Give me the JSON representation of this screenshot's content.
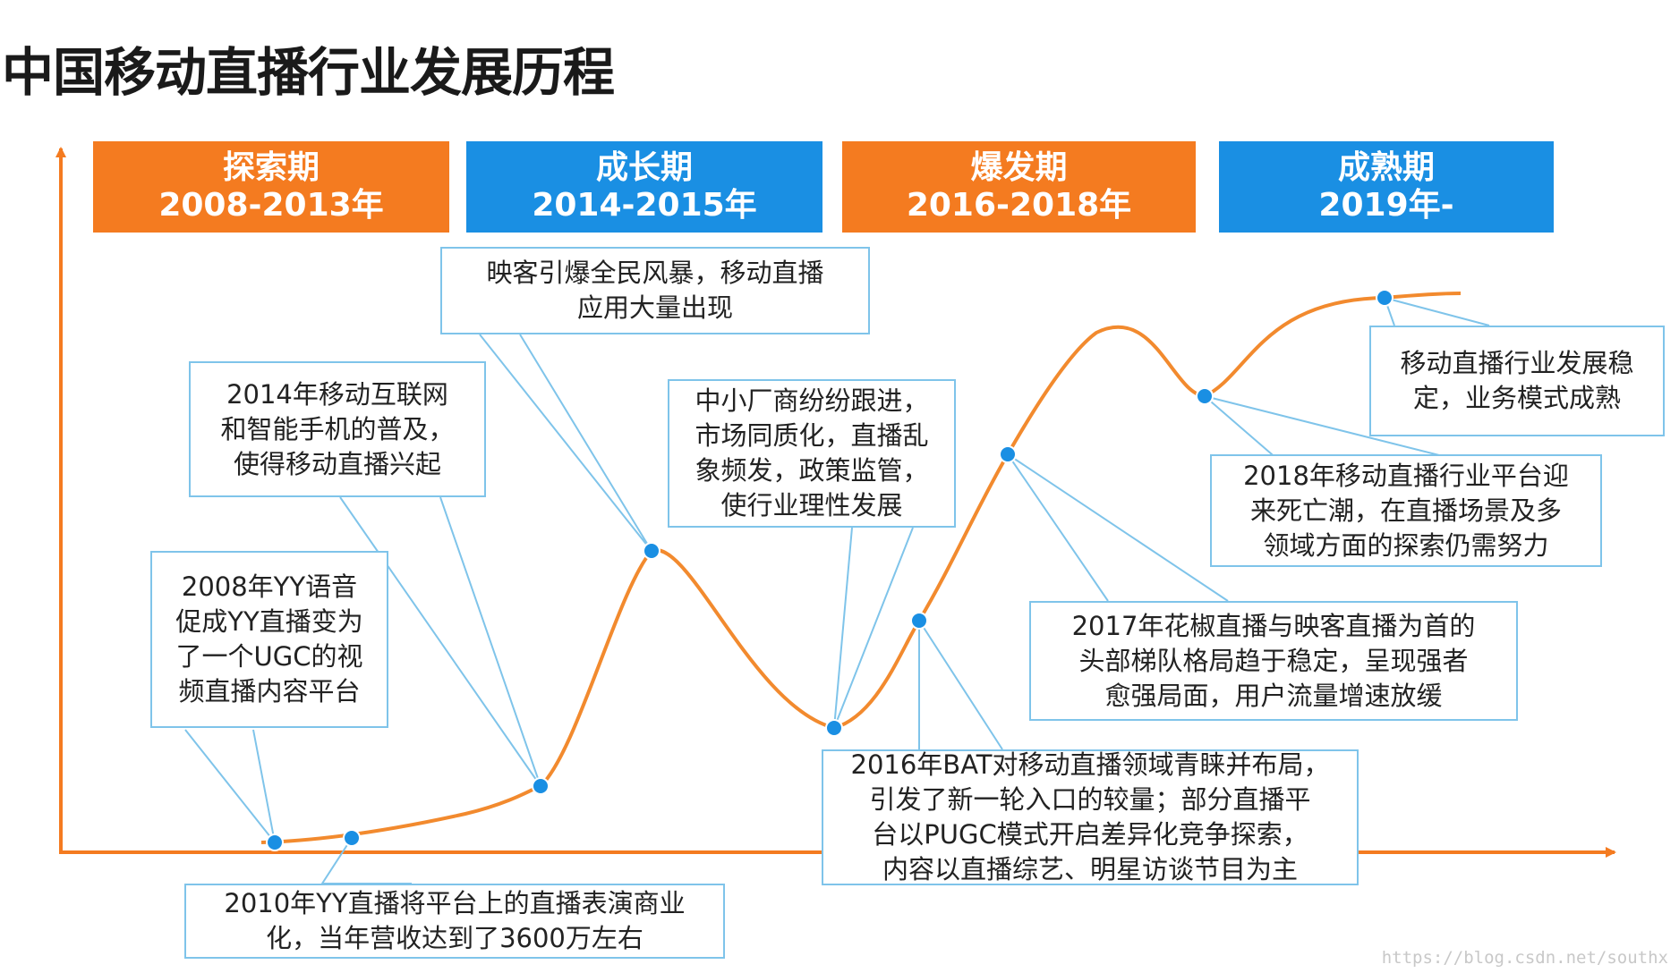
{
  "title": "中国移动直播行业发展历程",
  "phases": [
    {
      "name": "探索期",
      "years": "2008-2013年",
      "color": "#f47b20"
    },
    {
      "name": "成长期",
      "years": "2014-2015年",
      "color": "#1a8fe3"
    },
    {
      "name": "爆发期",
      "years": "2016-2018年",
      "color": "#f47b20"
    },
    {
      "name": "成熟期",
      "years": "2019年-",
      "color": "#1a8fe3"
    }
  ],
  "events": [
    {
      "id": "yy-2008",
      "text": "2008年YY语音\n促成YY直播变为\n了一个UGC的视\n频直播内容平台"
    },
    {
      "id": "yy-2010",
      "text": "2010年YY直播将平台上的直播表演商业\n化，当年营收达到了3600万左右"
    },
    {
      "id": "mobile-2014",
      "text": "2014年移动互联网\n和智能手机的普及，\n使得移动直播兴起"
    },
    {
      "id": "inke",
      "text": "映客引爆全民风暴，移动直播\n应用大量出现"
    },
    {
      "id": "homogeneous",
      "text": "中小厂商纷纷跟进，\n市场同质化，直播乱\n象频发，政策监管，\n使行业理性发展"
    },
    {
      "id": "bat-2016",
      "text": "2016年BAT对移动直播领域青睐并布局，\n引发了新一轮入口的较量；部分直播平\n台以PUGC模式开启差异化竞争探索，\n内容以直播综艺、明星访谈节目为主"
    },
    {
      "id": "huajiao-2017",
      "text": "2017年花椒直播与映客直播为首的\n头部梯队格局趋于稳定，呈现强者\n愈强局面，用户流量增速放缓"
    },
    {
      "id": "death-2018",
      "text": "2018年移动直播行业平台迎\n来死亡潮，在直播场景及多\n领域方面的探索仍需努力"
    },
    {
      "id": "stable",
      "text": "移动直播行业发展稳\n定，业务模式成熟"
    }
  ],
  "colors": {
    "curve": "#f28a2e",
    "axis": "#f47b20",
    "point": "#1a8fe3",
    "connector": "#7fc4ea"
  },
  "watermark": "https://blog.csdn.net/southx"
}
